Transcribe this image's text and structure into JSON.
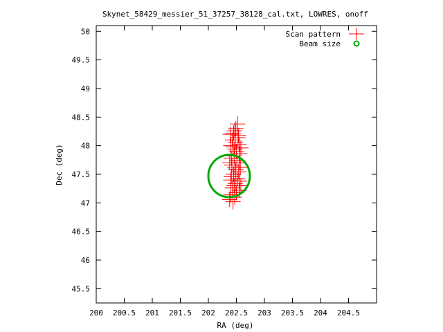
{
  "chart_data": {
    "type": "scatter",
    "title": "Skynet_58429_messier_51_37257_38128_cal.txt, LOWRES, onoff",
    "xlabel": "RA (deg)",
    "ylabel": "Dec (deg)",
    "xlim": [
      200,
      205
    ],
    "ylim": [
      45.25,
      50.1
    ],
    "x_ticks": [
      "200",
      "200.5",
      "201",
      "201.5",
      "202",
      "202.5",
      "203",
      "203.5",
      "204",
      "204.5"
    ],
    "y_ticks": [
      "45.5",
      "46",
      "46.5",
      "47",
      "47.5",
      "48",
      "48.5",
      "49",
      "49.5",
      "50"
    ],
    "legend_position": "top-right",
    "grid": false,
    "series": [
      {
        "name": "Scan pattern",
        "marker": "plus",
        "color": "#ff0000",
        "points": [
          [
            202.44,
            47.02
          ],
          [
            202.47,
            47.1
          ],
          [
            202.5,
            47.18
          ],
          [
            202.43,
            47.26
          ],
          [
            202.48,
            47.34
          ],
          [
            202.52,
            47.42
          ],
          [
            202.45,
            47.5
          ],
          [
            202.49,
            47.58
          ],
          [
            202.42,
            47.66
          ],
          [
            202.51,
            47.74
          ],
          [
            202.46,
            47.82
          ],
          [
            202.5,
            47.9
          ],
          [
            202.44,
            47.98
          ],
          [
            202.48,
            48.06
          ],
          [
            202.53,
            48.14
          ],
          [
            202.45,
            48.22
          ],
          [
            202.49,
            48.3
          ],
          [
            202.52,
            48.38
          ],
          [
            202.4,
            47.14
          ],
          [
            202.46,
            47.3
          ],
          [
            202.41,
            47.46
          ],
          [
            202.47,
            47.62
          ],
          [
            202.41,
            47.78
          ],
          [
            202.47,
            47.94
          ],
          [
            202.43,
            48.1
          ],
          [
            202.47,
            48.26
          ],
          [
            202.55,
            47.22
          ],
          [
            202.56,
            47.38
          ],
          [
            202.54,
            47.54
          ],
          [
            202.55,
            47.7
          ],
          [
            202.56,
            47.86
          ],
          [
            202.55,
            48.02
          ],
          [
            202.54,
            48.18
          ],
          [
            202.38,
            47.06
          ],
          [
            202.4,
            47.4
          ],
          [
            202.38,
            47.7
          ],
          [
            202.4,
            48.0
          ],
          [
            202.39,
            48.2
          ],
          [
            202.58,
            47.3
          ],
          [
            202.57,
            47.62
          ],
          [
            202.58,
            47.96
          ]
        ]
      },
      {
        "name": "Beam size",
        "marker": "ring",
        "color": "#00aa00",
        "center": [
          202.37,
          47.47
        ],
        "radius_ra": 0.37,
        "radius_dec": 0.37
      }
    ]
  }
}
